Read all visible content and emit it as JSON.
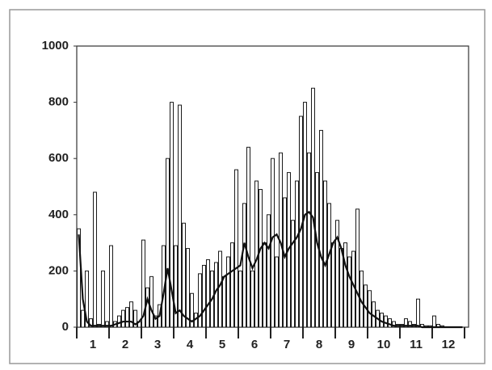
{
  "chart_data": {
    "type": "bar+line",
    "x_labels": [
      "1",
      "2",
      "3",
      "4",
      "5",
      "6",
      "7",
      "8",
      "9",
      "10",
      "11",
      "12"
    ],
    "x": [
      0.0625,
      0.1875,
      0.3125,
      0.4375,
      0.5625,
      0.6875,
      0.8125,
      0.9375,
      1.0625,
      1.1875,
      1.3125,
      1.4375,
      1.5625,
      1.6875,
      1.8125,
      1.9375,
      2.0625,
      2.1875,
      2.3125,
      2.4375,
      2.5625,
      2.6875,
      2.8125,
      2.9375,
      3.0625,
      3.1875,
      3.3125,
      3.4375,
      3.5625,
      3.6875,
      3.8125,
      3.9375,
      4.0625,
      4.1875,
      4.3125,
      4.4375,
      4.5625,
      4.6875,
      4.8125,
      4.9375,
      5.0625,
      5.1875,
      5.3125,
      5.4375,
      5.5625,
      5.6875,
      5.8125,
      5.9375,
      6.0625,
      6.1875,
      6.3125,
      6.4375,
      6.5625,
      6.6875,
      6.8125,
      6.9375,
      7.0625,
      7.1875,
      7.3125,
      7.4375,
      7.5625,
      7.6875,
      7.8125,
      7.9375,
      8.0625,
      8.1875,
      8.3125,
      8.4375,
      8.5625,
      8.6875,
      8.8125,
      8.9375,
      9.0625,
      9.1875,
      9.3125,
      9.4375,
      9.5625,
      9.6875,
      9.8125,
      9.9375,
      10.0625,
      10.1875,
      10.3125,
      10.4375,
      10.5625,
      10.6875,
      10.8125,
      10.9375,
      11.0625,
      11.1875,
      11.3125,
      11.4375,
      11.5625,
      11.6875,
      11.8125,
      11.9375
    ],
    "series": [
      {
        "kind": "bar",
        "color": "#1a1a1a",
        "values": [
          350,
          60,
          200,
          30,
          480,
          10,
          200,
          20,
          290,
          20,
          40,
          60,
          70,
          90,
          60,
          20,
          310,
          140,
          180,
          40,
          80,
          290,
          600,
          800,
          290,
          790,
          370,
          280,
          120,
          50,
          190,
          220,
          240,
          200,
          230,
          270,
          180,
          250,
          300,
          560,
          200,
          440,
          640,
          200,
          520,
          490,
          300,
          400,
          600,
          250,
          620,
          460,
          550,
          380,
          520,
          750,
          800,
          620,
          850,
          550,
          700,
          520,
          440,
          300,
          380,
          280,
          300,
          250,
          270,
          420,
          200,
          150,
          130,
          90,
          60,
          50,
          40,
          30,
          20,
          10,
          10,
          30,
          20,
          10,
          100,
          10,
          5,
          5,
          40,
          10,
          5,
          0,
          0,
          0,
          0,
          0
        ]
      },
      {
        "kind": "line",
        "color": "#111111",
        "values": [
          330,
          100,
          20,
          5,
          5,
          5,
          5,
          5,
          5,
          10,
          15,
          20,
          20,
          20,
          10,
          20,
          40,
          100,
          60,
          30,
          40,
          120,
          210,
          130,
          50,
          60,
          40,
          30,
          20,
          30,
          40,
          60,
          80,
          100,
          130,
          150,
          180,
          190,
          200,
          210,
          220,
          300,
          250,
          210,
          240,
          280,
          300,
          280,
          320,
          330,
          300,
          250,
          280,
          300,
          320,
          350,
          400,
          410,
          390,
          300,
          250,
          220,
          260,
          300,
          320,
          280,
          220,
          180,
          150,
          120,
          90,
          70,
          50,
          40,
          30,
          20,
          15,
          10,
          5,
          5,
          5,
          5,
          5,
          5,
          5,
          0,
          0,
          0,
          0,
          0,
          0,
          0,
          0,
          0,
          0,
          0
        ]
      }
    ],
    "xlim": [
      0,
      12
    ],
    "xticks": [
      0,
      1,
      2,
      3,
      4,
      5,
      6,
      7,
      8,
      9,
      10,
      11,
      12
    ],
    "ylim": [
      0,
      1000
    ],
    "yticks": [
      0,
      200,
      400,
      600,
      800,
      1000
    ]
  }
}
